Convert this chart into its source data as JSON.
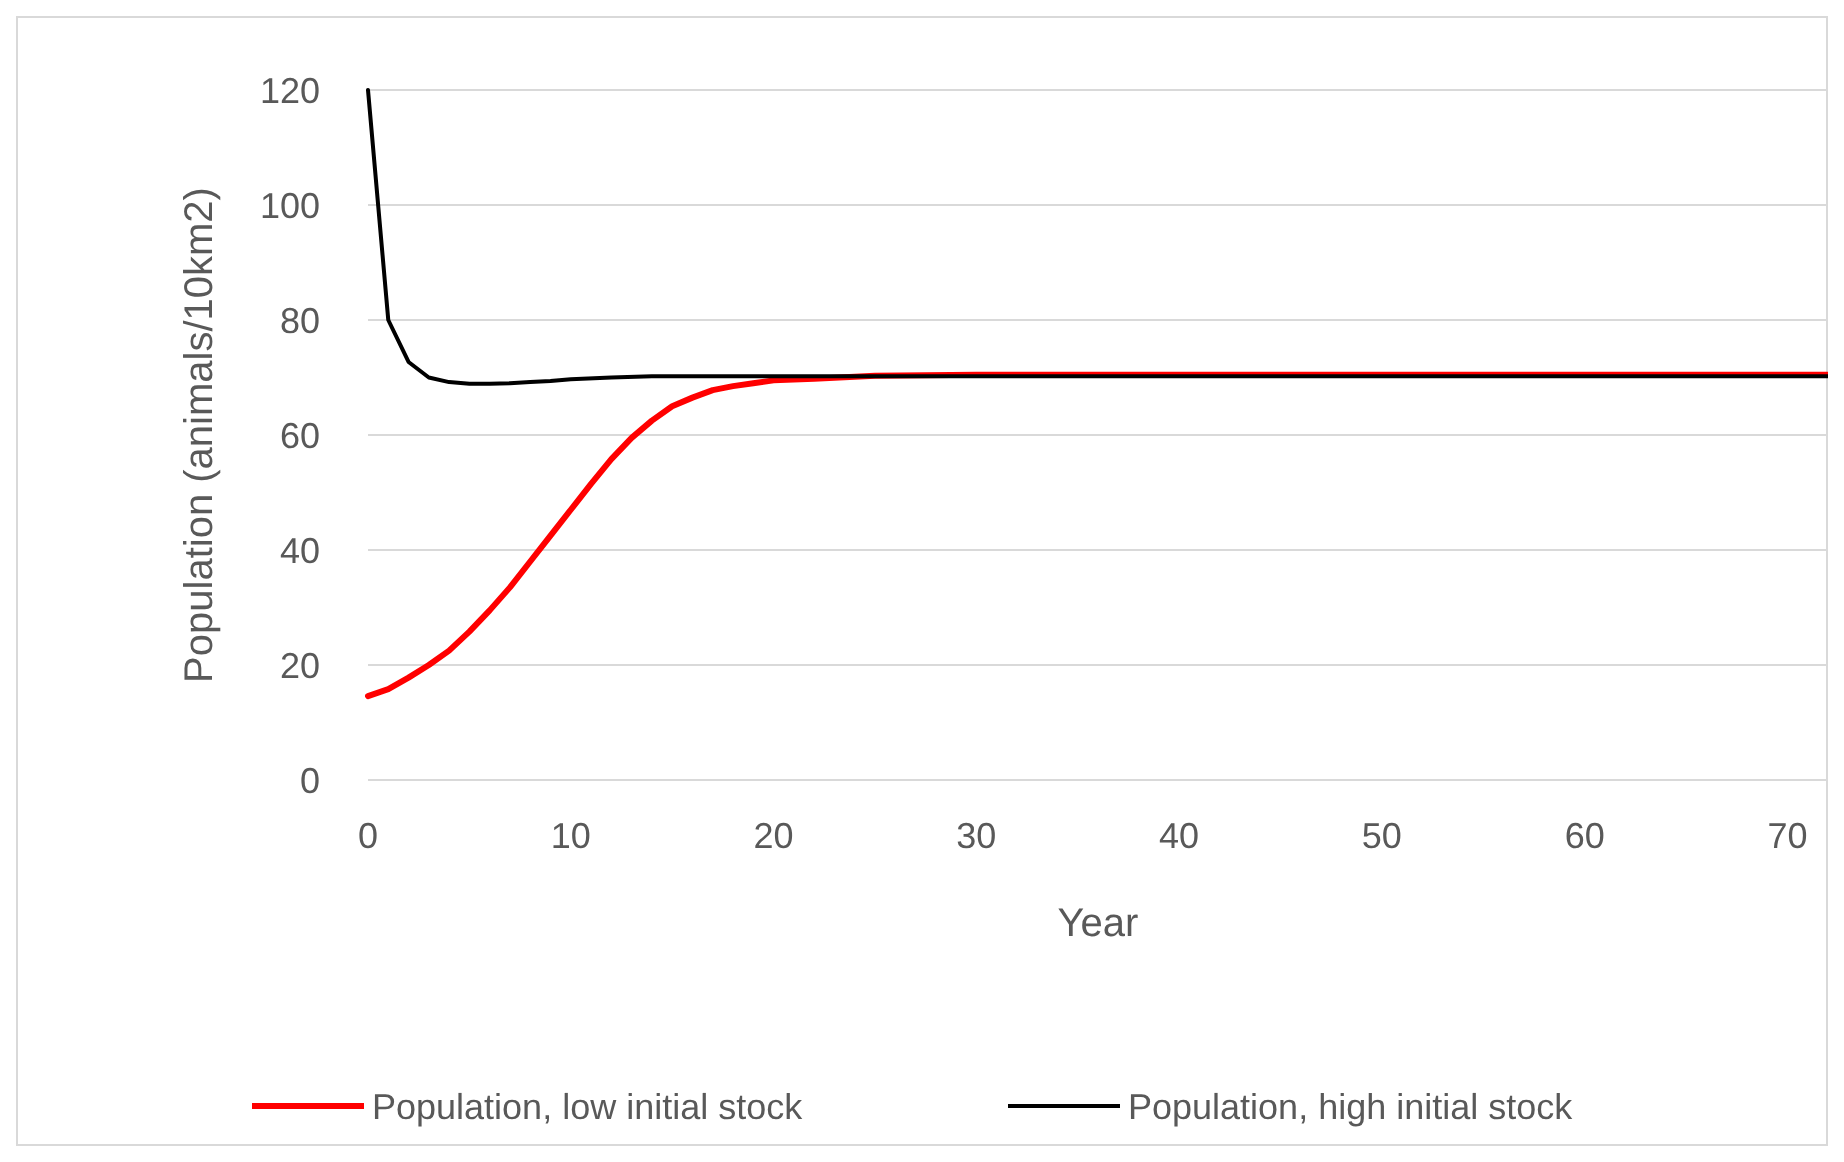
{
  "chart_data": {
    "type": "line",
    "xlabel": "Year",
    "ylabel": "Population (animals/10km2)",
    "xlim": [
      0,
      72
    ],
    "xticks": [
      0,
      10,
      20,
      30,
      40,
      50,
      60,
      70
    ],
    "ylim": [
      0,
      120
    ],
    "yticks": [
      0,
      20,
      40,
      60,
      80,
      100,
      120
    ],
    "grid": "y",
    "legend": "bottom",
    "line_style": "solid",
    "marker": "none",
    "series": [
      {
        "name": "Population, low initial stock",
        "color": "#ff0000",
        "x": [
          0,
          1,
          2,
          3,
          4,
          5,
          6,
          7,
          8,
          9,
          10,
          11,
          12,
          13,
          14,
          15,
          16,
          17,
          18,
          19,
          20,
          22,
          25,
          30,
          40,
          50,
          60,
          72
        ],
        "values": [
          14.6,
          15.8,
          17.8,
          20,
          22.5,
          25.8,
          29.5,
          33.5,
          38,
          42.5,
          47,
          51.5,
          55.8,
          59.5,
          62.5,
          65,
          66.5,
          67.8,
          68.5,
          69,
          69.5,
          69.8,
          70.3,
          70.5,
          70.5,
          70.5,
          70.5,
          70.5
        ]
      },
      {
        "name": "Population, high initial stock",
        "color": "#000000",
        "x": [
          0,
          1,
          2,
          3,
          4,
          5,
          6,
          7,
          8,
          9,
          10,
          12,
          14,
          20,
          30,
          40,
          50,
          60,
          72
        ],
        "values": [
          120,
          80,
          72.7,
          70,
          69.2,
          68.9,
          68.9,
          69,
          69.2,
          69.4,
          69.7,
          70,
          70.2,
          70.2,
          70.2,
          70.2,
          70.2,
          70.2,
          70.2
        ]
      }
    ]
  }
}
